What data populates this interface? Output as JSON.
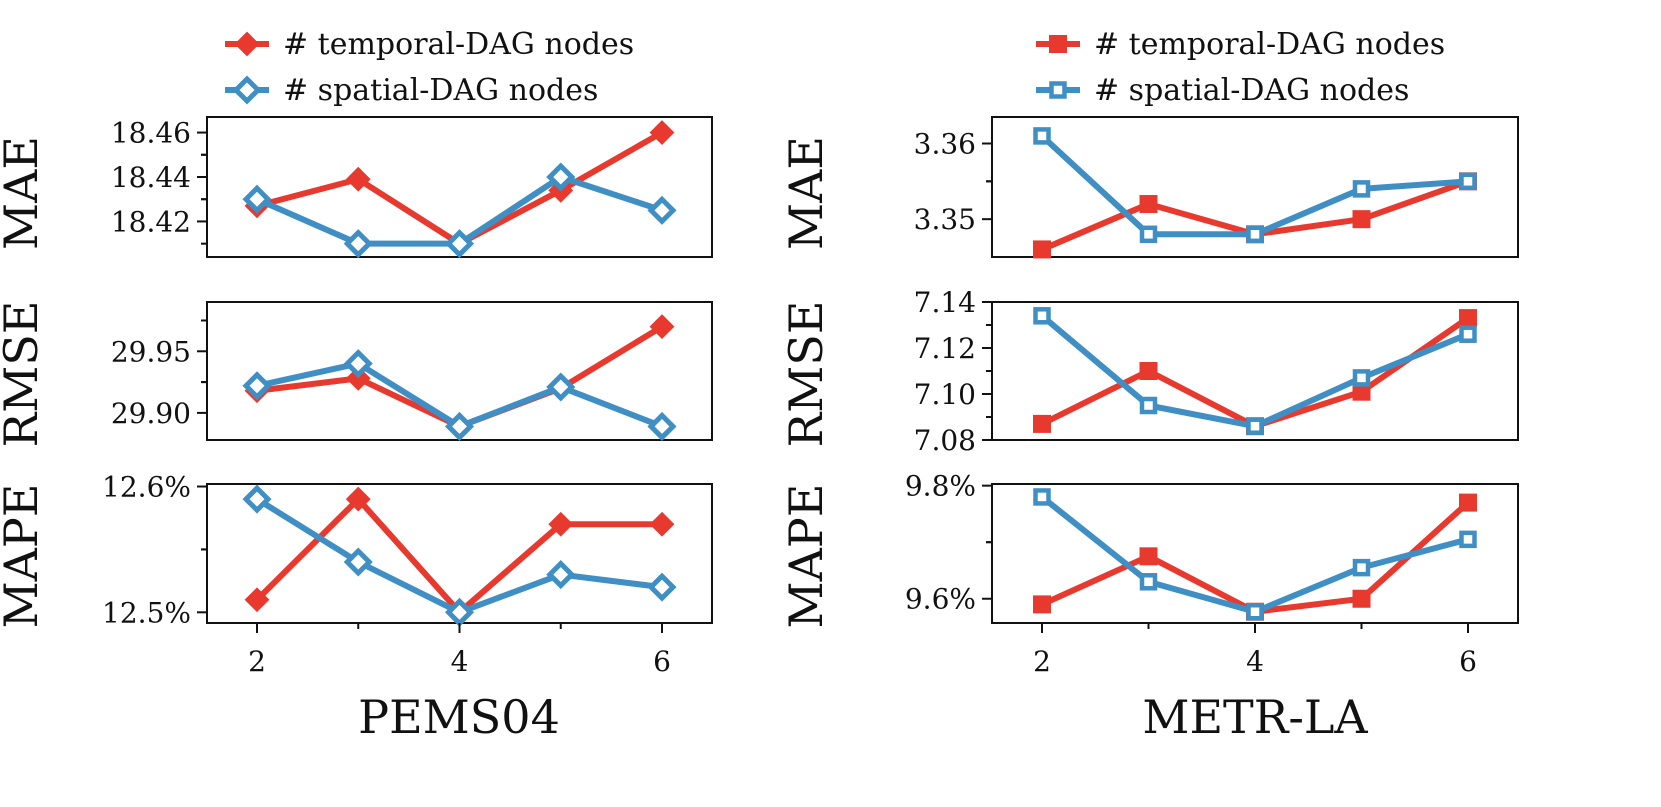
{
  "colors": {
    "temporal": "#e8392f",
    "spatial": "#3f8fc5"
  },
  "chart_data": [
    {
      "type": "line",
      "dataset": "PEMS04",
      "xlabel": "PEMS04",
      "x": [
        2,
        3,
        4,
        5,
        6
      ],
      "x_ticks": [
        "2",
        "4",
        "6"
      ],
      "legend": [
        {
          "name": "# temporal-DAG nodes",
          "marker": "diamond-filled"
        },
        {
          "name": "# spatial-DAG nodes",
          "marker": "diamond-open"
        }
      ],
      "panels": [
        {
          "ylabel": "MAE",
          "ylim": [
            18.404,
            18.467
          ],
          "yticks": [
            18.42,
            18.44,
            18.46
          ],
          "ytick_labels": [
            "18.42",
            "18.44",
            "18.46"
          ],
          "series": [
            {
              "name": "# temporal-DAG nodes",
              "values": [
                18.427,
                18.439,
                18.41,
                18.434,
                18.46
              ]
            },
            {
              "name": "# spatial-DAG nodes",
              "values": [
                18.43,
                18.41,
                18.41,
                18.44,
                18.425
              ]
            }
          ]
        },
        {
          "ylabel": "RMSE",
          "ylim": [
            29.878,
            29.99
          ],
          "yticks": [
            29.9,
            29.95
          ],
          "ytick_labels": [
            "29.90",
            "29.95"
          ],
          "series": [
            {
              "name": "# temporal-DAG nodes",
              "values": [
                29.918,
                29.928,
                29.889,
                29.92,
                29.97
              ]
            },
            {
              "name": "# spatial-DAG nodes",
              "values": [
                29.922,
                29.94,
                29.889,
                29.921,
                29.889
              ]
            }
          ]
        },
        {
          "ylabel": "MAPE",
          "ylim": [
            12.4915,
            12.602
          ],
          "yticks": [
            12.5,
            12.6
          ],
          "ytick_labels": [
            "12.5%",
            "12.6%"
          ],
          "series": [
            {
              "name": "# temporal-DAG nodes",
              "values": [
                12.51,
                12.59,
                12.5,
                12.57,
                12.57
              ]
            },
            {
              "name": "# spatial-DAG nodes",
              "values": [
                12.59,
                12.54,
                12.5,
                12.53,
                12.52
              ]
            }
          ]
        }
      ]
    },
    {
      "type": "line",
      "dataset": "METR-LA",
      "xlabel": "METR-LA",
      "x": [
        2,
        3,
        4,
        5,
        6
      ],
      "x_ticks": [
        "2",
        "4",
        "6"
      ],
      "legend": [
        {
          "name": "# temporal-DAG nodes",
          "marker": "square-filled"
        },
        {
          "name": "# spatial-DAG nodes",
          "marker": "square-open"
        }
      ],
      "panels": [
        {
          "ylabel": "MAE",
          "ylim": [
            3.345,
            3.3635
          ],
          "yticks": [
            3.35,
            3.36
          ],
          "ytick_labels": [
            "3.35",
            "3.36"
          ],
          "series": [
            {
              "name": "# temporal-DAG nodes",
              "values": [
                3.346,
                3.352,
                3.348,
                3.35,
                3.355
              ]
            },
            {
              "name": "# spatial-DAG nodes",
              "values": [
                3.361,
                3.348,
                3.348,
                3.354,
                3.355
              ]
            }
          ]
        },
        {
          "ylabel": "RMSE",
          "ylim": [
            7.08,
            7.14
          ],
          "yticks": [
            7.08,
            7.1,
            7.12,
            7.14
          ],
          "ytick_labels": [
            "7.08",
            "7.10",
            "7.12",
            "7.14"
          ],
          "series": [
            {
              "name": "# temporal-DAG nodes",
              "values": [
                7.087,
                7.11,
                7.086,
                7.101,
                7.133
              ]
            },
            {
              "name": "# spatial-DAG nodes",
              "values": [
                7.134,
                7.095,
                7.086,
                7.107,
                7.126
              ]
            }
          ]
        },
        {
          "ylabel": "MAPE",
          "ylim": [
            9.5571,
            9.8029
          ],
          "yticks": [
            9.6,
            9.8
          ],
          "ytick_labels": [
            "9.6%",
            "9.8%"
          ],
          "series": [
            {
              "name": "# temporal-DAG nodes",
              "values": [
                9.59,
                9.675,
                9.577,
                9.6,
                9.77
              ]
            },
            {
              "name": "# spatial-DAG nodes",
              "values": [
                9.78,
                9.63,
                9.577,
                9.655,
                9.705
              ]
            }
          ]
        }
      ]
    }
  ]
}
